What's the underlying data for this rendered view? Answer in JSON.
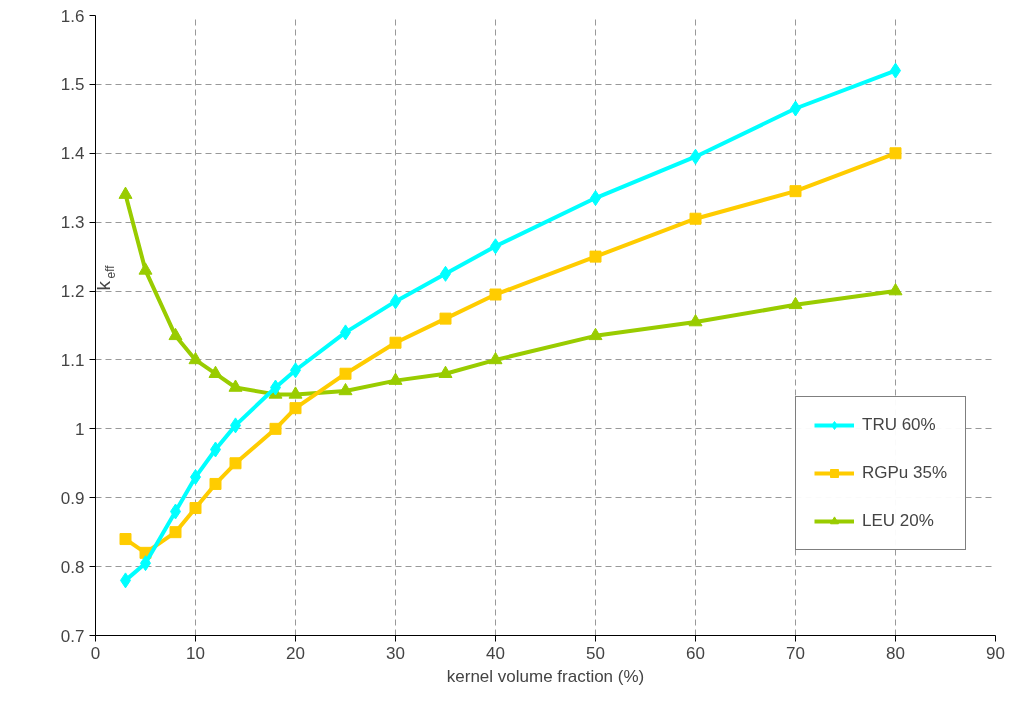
{
  "chart_data": {
    "type": "line",
    "xlabel": "kernel volume fraction (%)",
    "ylabel": "k$_{eff}$",
    "x": [
      3,
      5,
      8,
      10,
      12,
      14,
      18,
      20,
      25,
      30,
      35,
      40,
      50,
      60,
      70,
      80
    ],
    "series": [
      {
        "name": "TRU 60%",
        "color": "#00ffff",
        "marker": "diamond",
        "values": [
          0.78,
          0.805,
          0.88,
          0.93,
          0.97,
          1.005,
          1.06,
          1.085,
          1.14,
          1.185,
          1.225,
          1.265,
          1.335,
          1.395,
          1.465,
          1.52
        ]
      },
      {
        "name": "RGPu 35%",
        "color": "#ffcc00",
        "marker": "square",
        "values": [
          0.84,
          0.82,
          0.85,
          0.885,
          0.92,
          0.95,
          1.0,
          1.03,
          1.08,
          1.125,
          1.16,
          1.195,
          1.25,
          1.305,
          1.345,
          1.4
        ]
      },
      {
        "name": "LEU 20%",
        "color": "#99cc00",
        "marker": "triangle",
        "values": [
          1.34,
          1.23,
          1.135,
          1.1,
          1.08,
          1.06,
          1.05,
          1.05,
          1.055,
          1.07,
          1.08,
          1.1,
          1.135,
          1.155,
          1.18,
          1.2
        ]
      }
    ],
    "xlim": [
      0,
      90
    ],
    "xticks": [
      0,
      10,
      20,
      30,
      40,
      50,
      60,
      70,
      80,
      90
    ],
    "ylim": [
      0.7,
      1.6
    ],
    "yticks": [
      0.7,
      0.8,
      0.9,
      1,
      1.1,
      1.2,
      1.3,
      1.4,
      1.5,
      1.6
    ],
    "grid": true,
    "legend": "right",
    "line_style": "solid"
  }
}
